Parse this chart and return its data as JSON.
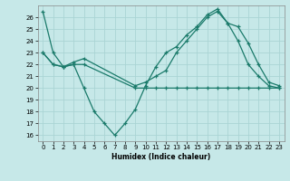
{
  "title": "",
  "xlabel": "Humidex (Indice chaleur)",
  "ylabel": "",
  "bg_color": "#c6e8e8",
  "line_color": "#1a7a6a",
  "grid_color": "#aad4d4",
  "ylim": [
    15.5,
    27.0
  ],
  "xlim": [
    -0.5,
    23.5
  ],
  "yticks": [
    16,
    17,
    18,
    19,
    20,
    21,
    22,
    23,
    24,
    25,
    26
  ],
  "xticks": [
    0,
    1,
    2,
    3,
    4,
    5,
    6,
    7,
    8,
    9,
    10,
    11,
    12,
    13,
    14,
    15,
    16,
    17,
    18,
    19,
    20,
    21,
    22,
    23
  ],
  "series": [
    {
      "x": [
        0,
        1,
        2,
        3,
        4,
        5,
        6,
        7,
        8,
        9,
        10,
        11,
        12,
        13,
        14,
        15,
        16,
        17,
        18,
        19,
        20,
        21,
        22,
        23
      ],
      "y": [
        26.5,
        23.0,
        21.8,
        22.0,
        20.0,
        18.0,
        17.0,
        16.0,
        17.0,
        18.2,
        20.2,
        21.8,
        23.0,
        23.5,
        24.5,
        25.2,
        26.2,
        26.7,
        25.5,
        24.0,
        22.0,
        21.0,
        20.2,
        20.0
      ]
    },
    {
      "x": [
        0,
        1,
        2,
        3,
        4,
        9,
        10,
        11,
        12,
        13,
        14,
        15,
        16,
        17,
        18,
        19,
        20,
        21,
        22,
        23
      ],
      "y": [
        23.0,
        22.0,
        21.8,
        22.0,
        22.0,
        20.0,
        20.0,
        20.0,
        20.0,
        20.0,
        20.0,
        20.0,
        20.0,
        20.0,
        20.0,
        20.0,
        20.0,
        20.0,
        20.0,
        20.0
      ]
    },
    {
      "x": [
        0,
        1,
        2,
        3,
        4,
        9,
        10,
        11,
        12,
        13,
        14,
        15,
        16,
        17,
        18,
        19,
        20,
        21,
        22,
        23
      ],
      "y": [
        23.0,
        22.0,
        21.8,
        22.2,
        22.5,
        20.2,
        20.5,
        21.0,
        21.5,
        23.0,
        24.0,
        25.0,
        26.0,
        26.5,
        25.5,
        25.2,
        23.8,
        22.0,
        20.5,
        20.2
      ]
    }
  ]
}
